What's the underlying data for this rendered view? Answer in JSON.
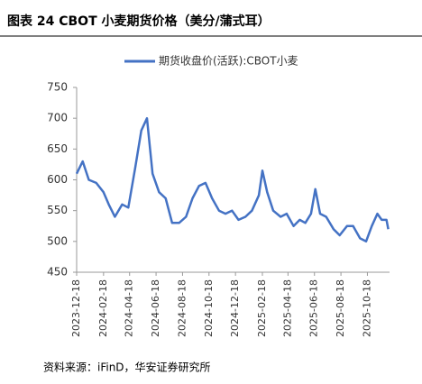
{
  "chart_data": {
    "type": "line",
    "title": "图表 24 CBOT 小麦期货价格（美分/蒲式耳）",
    "source": "资料来源：iFinD，华安证券研究所",
    "x": [
      "2023-12-18",
      "2024-01-01",
      "2024-01-15",
      "2024-02-01",
      "2024-02-18",
      "2024-03-01",
      "2024-03-15",
      "2024-04-01",
      "2024-04-15",
      "2024-05-01",
      "2024-05-15",
      "2024-05-28",
      "2024-06-10",
      "2024-06-25",
      "2024-07-10",
      "2024-07-25",
      "2024-08-10",
      "2024-08-26",
      "2024-09-10",
      "2024-09-25",
      "2024-10-10",
      "2024-10-25",
      "2024-11-10",
      "2024-11-25",
      "2024-12-10",
      "2024-12-25",
      "2025-01-10",
      "2025-01-25",
      "2025-02-10",
      "2025-02-18",
      "2025-03-01",
      "2025-03-15",
      "2025-04-01",
      "2025-04-15",
      "2025-05-01",
      "2025-05-15",
      "2025-05-28",
      "2025-06-10",
      "2025-06-20",
      "2025-07-01",
      "2025-07-15",
      "2025-08-01",
      "2025-08-15",
      "2025-09-01",
      "2025-09-15",
      "2025-10-01",
      "2025-10-15",
      "2025-10-28",
      "2025-11-10",
      "2025-11-20",
      "2025-12-01",
      "2025-12-05"
    ],
    "series": [
      {
        "name": "期货收盘价(活跃):CBOT小麦",
        "color": "#4472c4",
        "values": [
          610,
          630,
          600,
          595,
          580,
          560,
          540,
          560,
          555,
          620,
          680,
          700,
          610,
          580,
          570,
          530,
          530,
          540,
          570,
          590,
          595,
          570,
          550,
          545,
          550,
          535,
          540,
          550,
          575,
          615,
          580,
          550,
          540,
          545,
          525,
          535,
          530,
          545,
          585,
          545,
          540,
          520,
          510,
          525,
          525,
          505,
          500,
          525,
          545,
          535,
          535,
          520
        ]
      }
    ],
    "xlim": [
      "2023-12-18",
      "2025-12-08"
    ],
    "xticks": [
      "2023-12-18",
      "2024-02-18",
      "2024-04-18",
      "2024-06-18",
      "2024-08-18",
      "2024-10-18",
      "2024-12-18",
      "2025-02-18",
      "2025-04-18",
      "2025-06-18",
      "2025-08-18",
      "2025-10-18"
    ],
    "ylim": [
      450,
      750
    ],
    "yticks": [
      450,
      500,
      550,
      600,
      650,
      700,
      750
    ],
    "legend": "top"
  }
}
